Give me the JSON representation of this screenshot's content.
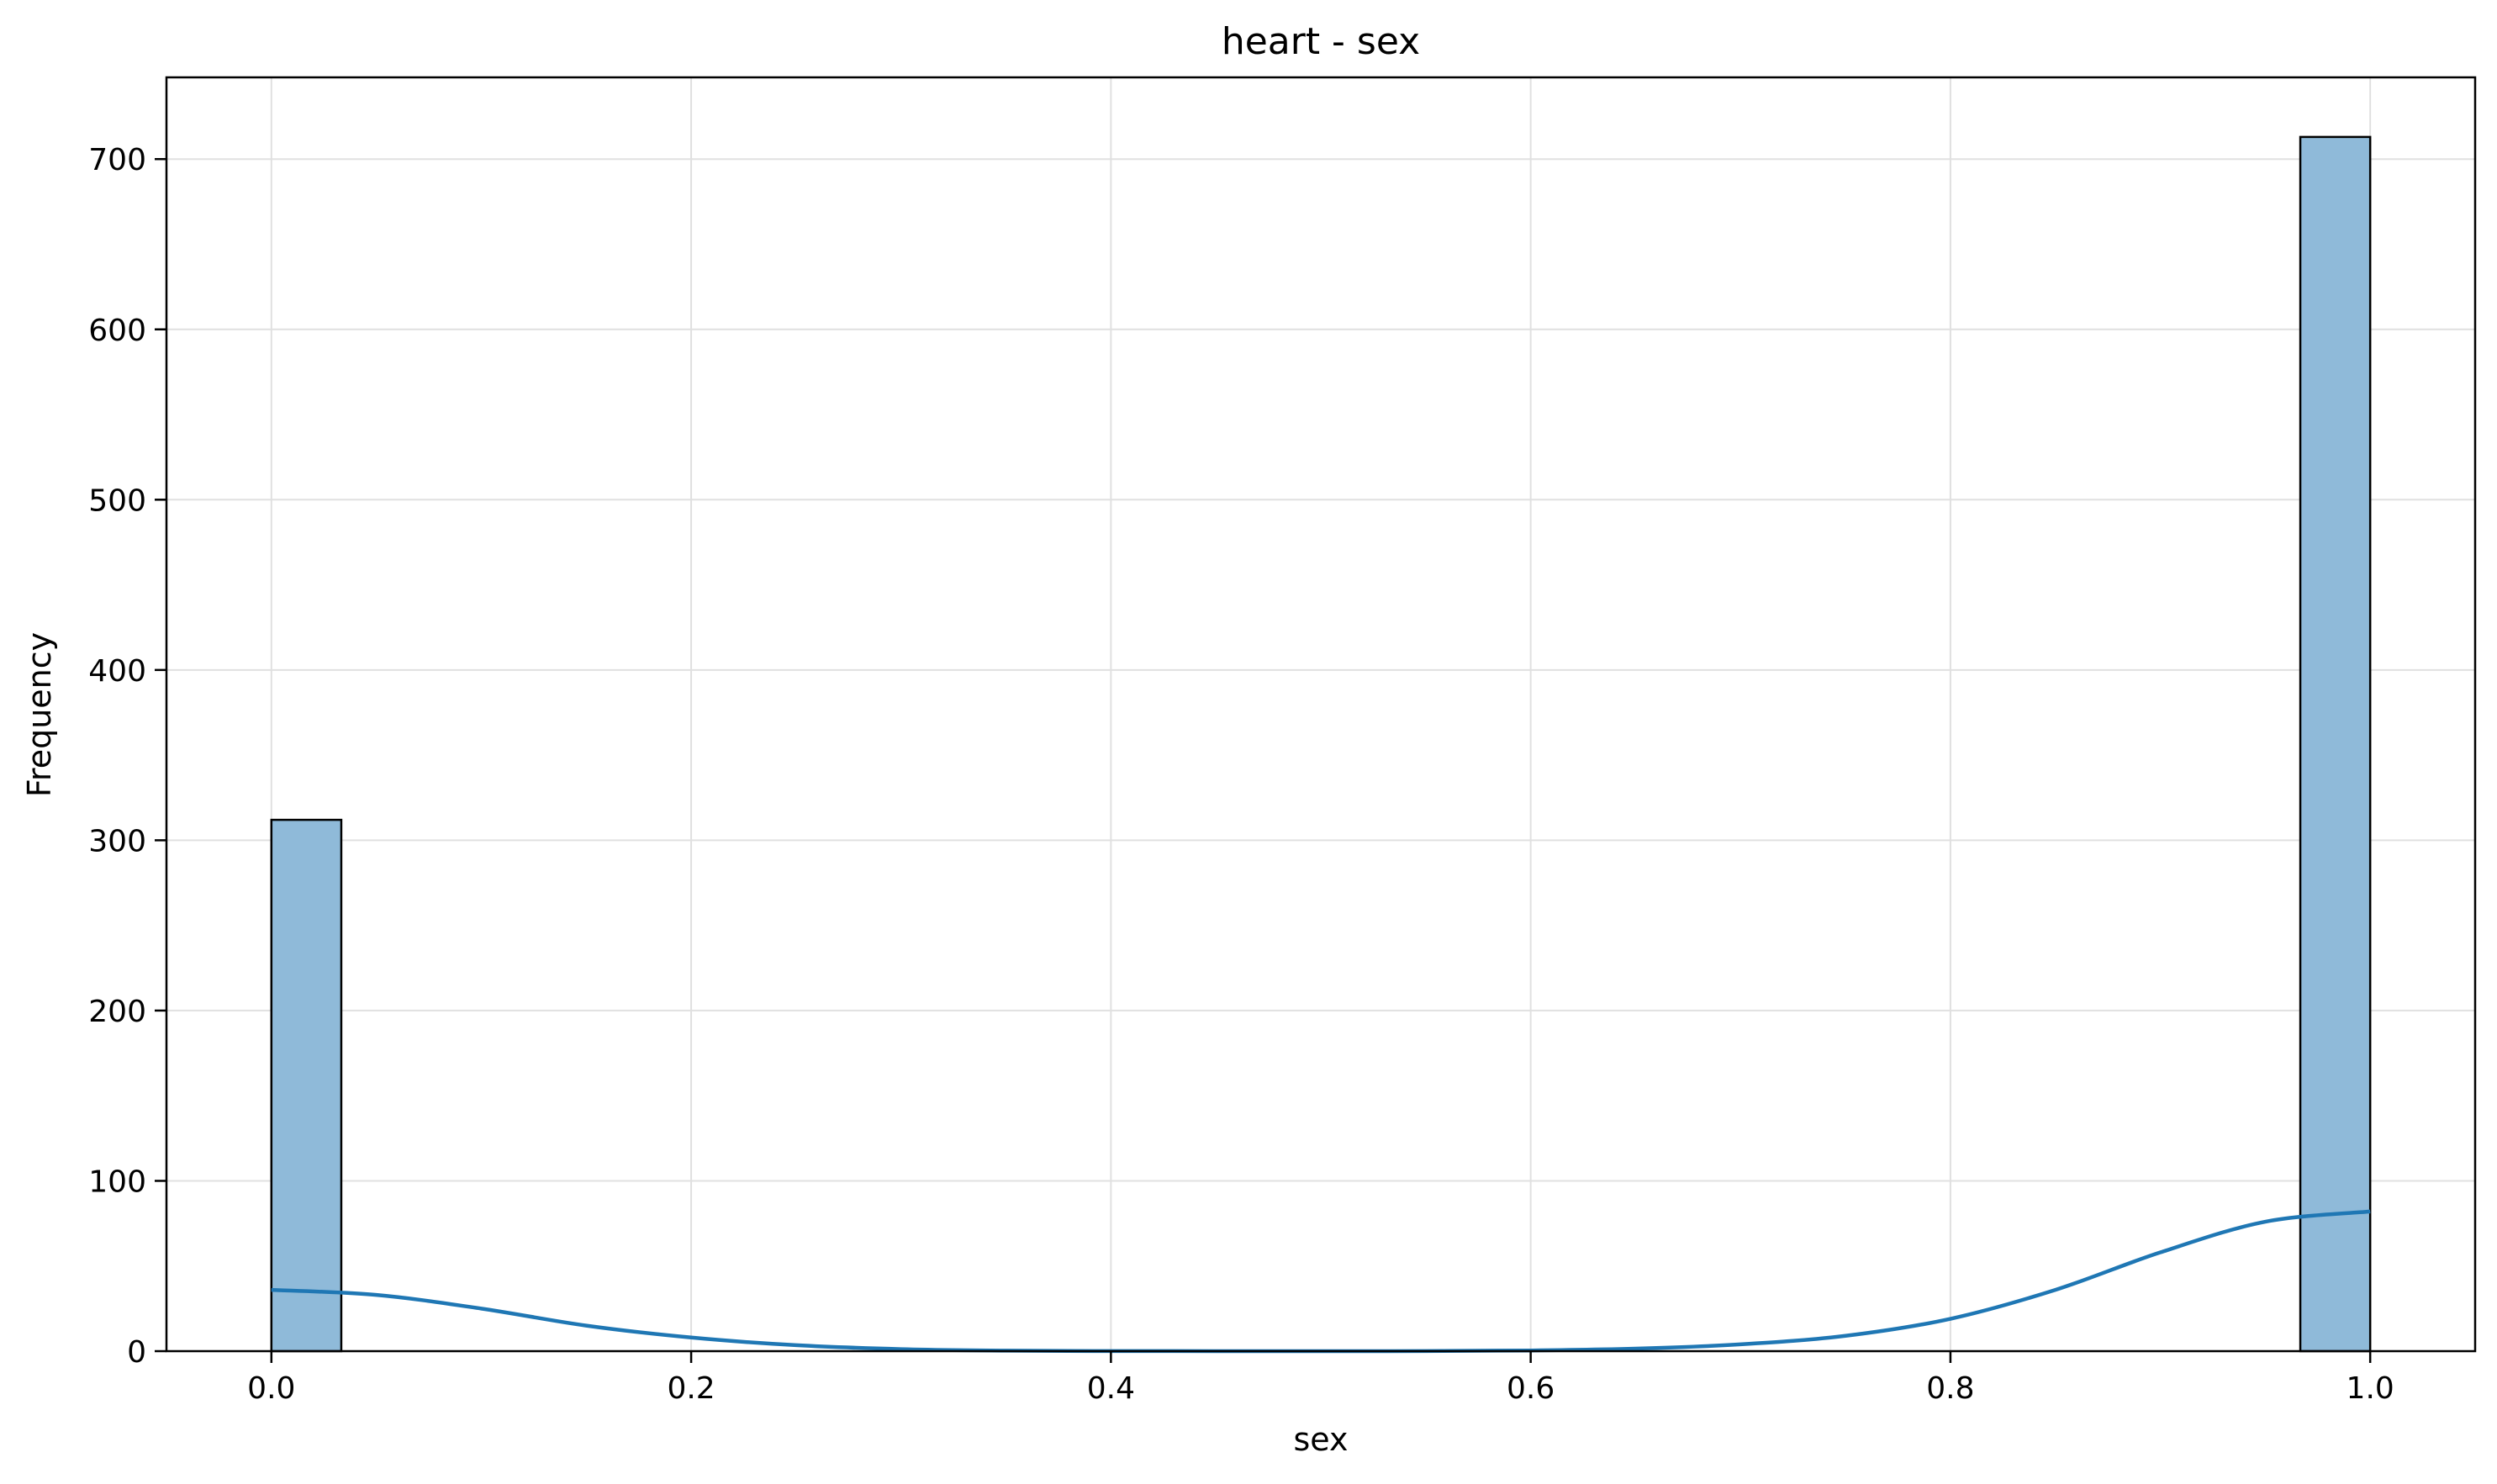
{
  "chart_data": {
    "type": "bar",
    "title": "heart - sex",
    "xlabel": "sex",
    "ylabel": "Frequency",
    "xlim": [
      -0.05,
      1.05
    ],
    "ylim": [
      0,
      748
    ],
    "x_ticks": [
      "0.0",
      "0.2",
      "0.4",
      "0.6",
      "0.8",
      "1.0"
    ],
    "y_ticks": [
      "0",
      "100",
      "200",
      "300",
      "400",
      "500",
      "600",
      "700"
    ],
    "grid": true,
    "legend": "none",
    "bins": [
      {
        "x_start": 0.0,
        "x_end": 0.0333,
        "value": 312
      },
      {
        "x_start": 0.9667,
        "x_end": 1.0,
        "value": 713
      }
    ],
    "kde": {
      "x": [
        0.0,
        0.05,
        0.1,
        0.15,
        0.2,
        0.25,
        0.3,
        0.35,
        0.4,
        0.45,
        0.5,
        0.55,
        0.6,
        0.65,
        0.7,
        0.75,
        0.8,
        0.85,
        0.9,
        0.95,
        1.0
      ],
      "y": [
        36,
        33,
        25,
        15,
        8,
        3.5,
        1.2,
        0.3,
        0.05,
        0.02,
        0.02,
        0.05,
        0.4,
        1.5,
        4,
        9,
        19,
        36,
        58,
        76,
        82
      ]
    },
    "colors": {
      "bar_fill": "#8fbad9",
      "bar_edge": "#000000",
      "kde_line": "#1f77b4",
      "grid": "#e0e0e0"
    }
  }
}
